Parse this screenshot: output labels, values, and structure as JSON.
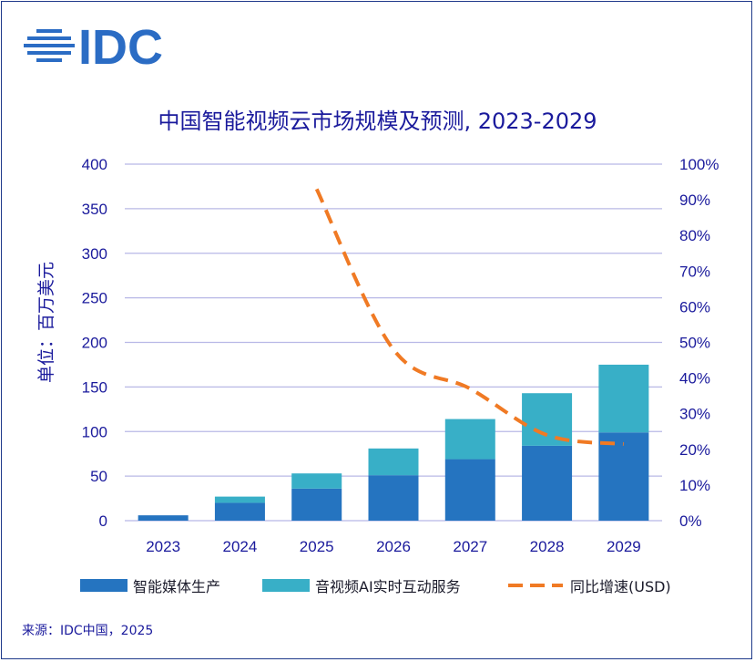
{
  "logo": {
    "text": "IDC",
    "color": "#2b6cc4"
  },
  "chart_data": {
    "type": "bar",
    "stacked": true,
    "title": "中国智能视频云市场规模及预测, 2023-2029",
    "ylabel": "单位：百万美元",
    "categories": [
      "2023",
      "2024",
      "2025",
      "2026",
      "2027",
      "2028",
      "2029"
    ],
    "ylim": [
      0,
      400
    ],
    "y_ticks": [
      "0",
      "50",
      "100",
      "150",
      "200",
      "250",
      "300",
      "350",
      "400"
    ],
    "y2lim": [
      0,
      100
    ],
    "y2_ticks": [
      "0%",
      "10%",
      "20%",
      "30%",
      "40%",
      "50%",
      "60%",
      "70%",
      "80%",
      "90%",
      "100%"
    ],
    "grid": true,
    "legend_position": "bottom",
    "series": [
      {
        "name": "智能媒体生产",
        "type": "bar",
        "color": "#2574c0",
        "values": [
          6,
          20,
          36,
          51,
          69,
          84,
          99
        ]
      },
      {
        "name": "音视频AI实时互动服务",
        "type": "bar",
        "color": "#38afc7",
        "values": [
          0,
          7,
          17,
          30,
          45,
          59,
          76
        ]
      },
      {
        "name": "同比增速(USD)",
        "type": "line",
        "axis": "right",
        "color": "#f07a24",
        "dashed": true,
        "values": [
          null,
          null,
          93,
          48,
          37,
          24,
          21.5
        ]
      }
    ]
  },
  "source": "来源：IDC中国，2025"
}
